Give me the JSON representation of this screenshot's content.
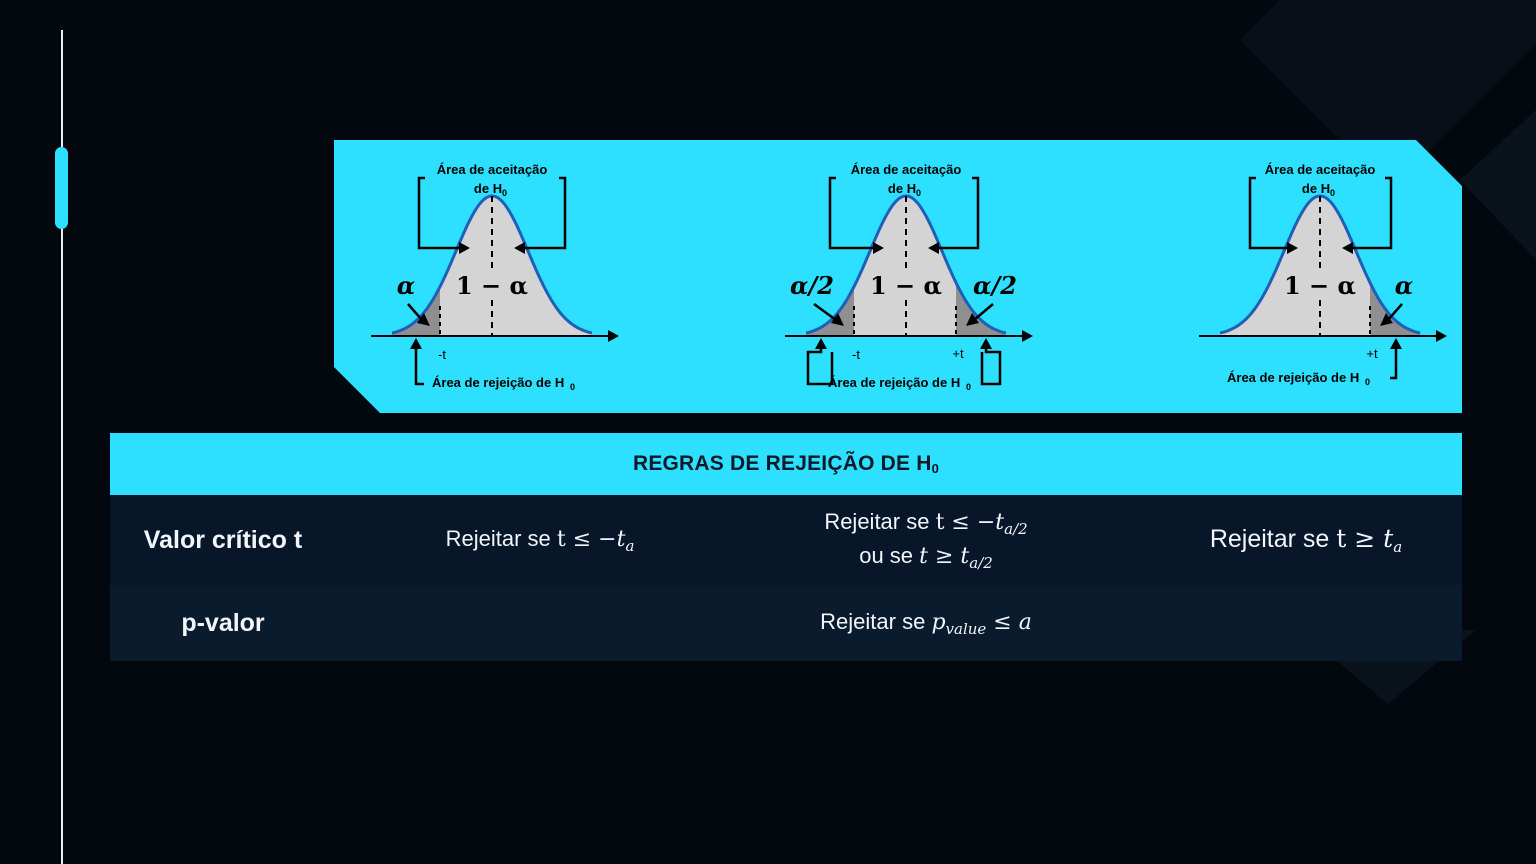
{
  "diagram": {
    "panels": [
      {
        "name": "left-tail",
        "acceptance_label_line1": "Área de aceitação",
        "acceptance_label_line2": "de H",
        "acceptance_label_sub": "0",
        "center_label": "1 − α",
        "left_tail_label": "α",
        "right_tail_label": "",
        "left_tick_label": "-t",
        "right_tick_label": "",
        "rejection_label": "Área de rejeição de H",
        "rejection_label_sub": "0"
      },
      {
        "name": "two-tail",
        "acceptance_label_line1": "Área de aceitação",
        "acceptance_label_line2": "de H",
        "acceptance_label_sub": "0",
        "center_label": "1 − α",
        "left_tail_label": "α/2",
        "right_tail_label": "α/2",
        "left_tick_label": "-t",
        "right_tick_label": "+t",
        "rejection_label": "Área de rejeição de H",
        "rejection_label_sub": "0"
      },
      {
        "name": "right-tail",
        "acceptance_label_line1": "Área de aceitação",
        "acceptance_label_line2": "de H",
        "acceptance_label_sub": "0",
        "center_label": "1 − α",
        "left_tail_label": "",
        "right_tail_label": "α",
        "left_tick_label": "",
        "right_tick_label": "+t",
        "rejection_label": "Área de rejeição de H",
        "rejection_label_sub": "0"
      }
    ]
  },
  "table": {
    "header": "REGRAS DE REJEIÇÃO DE H",
    "header_sub": "0",
    "rows": {
      "critical": {
        "label": "Valor crítico t",
        "left": {
          "prefix": "Rejeitar se ",
          "var": "t",
          "op": " ≤ ",
          "expr": "−t",
          "sub": "a"
        },
        "two": {
          "line1_prefix": "Rejeitar se ",
          "line1_var": "t",
          "line1_op": " ≤ ",
          "line1_expr": "−t",
          "line1_sub": "a/2",
          "line2_prefix": "ou se ",
          "line2_var": "t",
          "line2_op": " ≥ ",
          "line2_expr": "t",
          "line2_sub": "a/2"
        },
        "right": {
          "prefix": "Rejeitar se ",
          "var": "t",
          "op": " ≥ ",
          "expr": "t",
          "sub": "a"
        }
      },
      "pvalue": {
        "label": "p-valor",
        "rule_prefix": "Rejeitar se ",
        "rule_var": "p",
        "rule_sub": "value",
        "rule_op": " ≤ ",
        "rule_rhs": "a"
      }
    }
  },
  "colors": {
    "background": "#03080f",
    "accent": "#2ee0ff",
    "row_dark": "#071628",
    "row_darker": "#0a1b2e",
    "curve": "#1f5fb8",
    "fill_accept": "#d4d4d4",
    "fill_reject": "#8f8f8f"
  }
}
